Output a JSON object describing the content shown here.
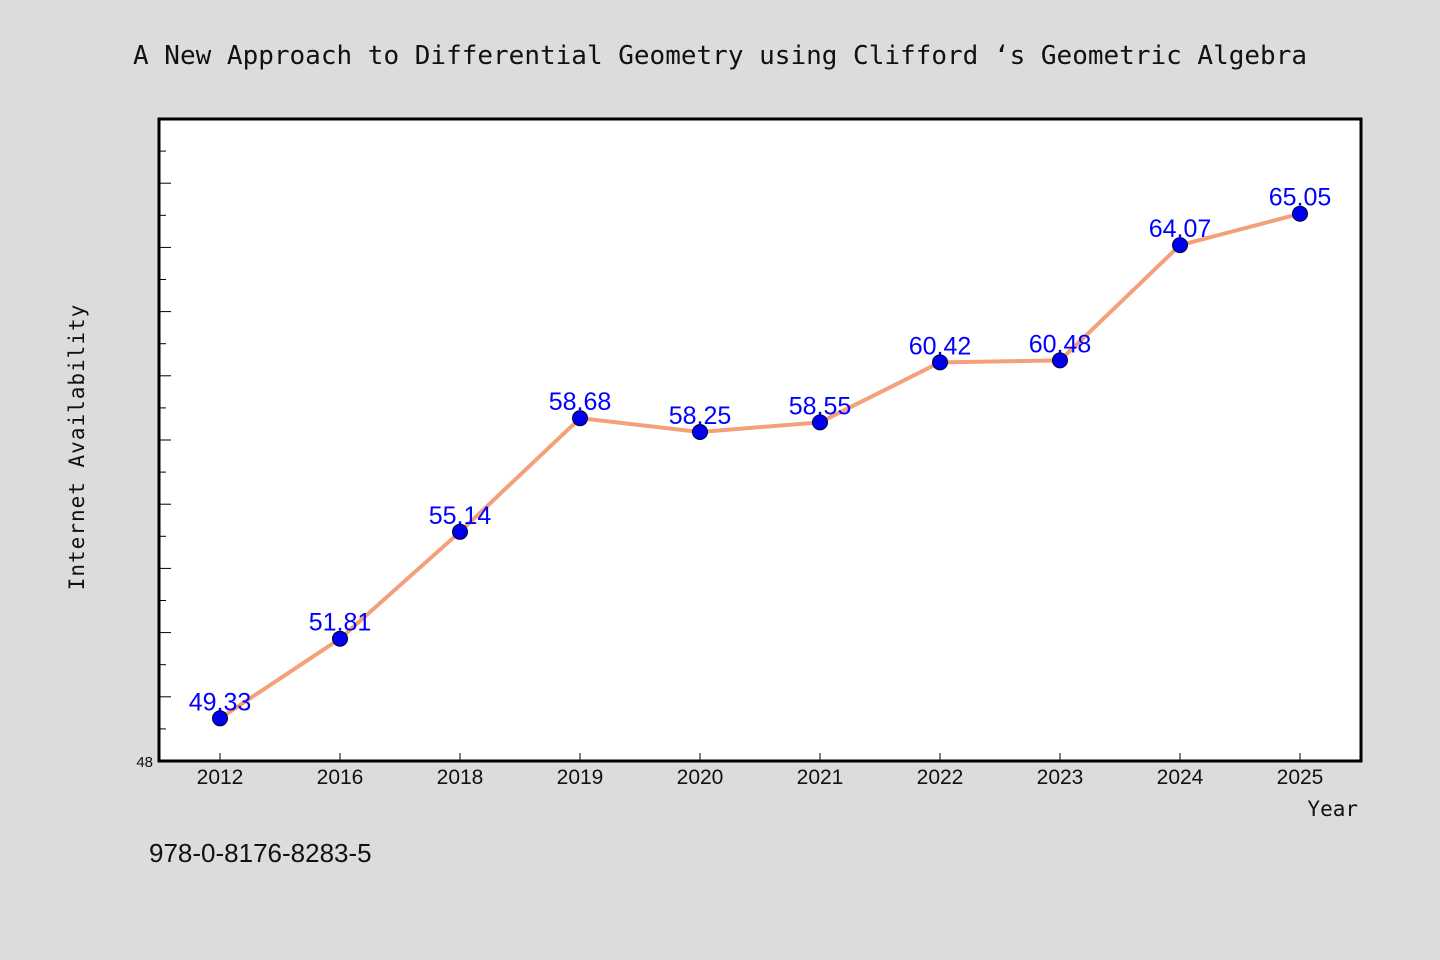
{
  "chart_data": {
    "type": "line",
    "title": "A New Approach to Differential Geometry using Clifford ‘s Geometric Algebra",
    "xlabel": "Year",
    "ylabel": "Internet Availability",
    "categories": [
      "2012",
      "2016",
      "2018",
      "2019",
      "2020",
      "2021",
      "2022",
      "2023",
      "2024",
      "2025"
    ],
    "series": [
      {
        "values": [
          49.33,
          51.81,
          55.14,
          58.68,
          58.25,
          58.55,
          60.42,
          60.48,
          64.07,
          65.05
        ],
        "labels": [
          "49.33",
          "51.81",
          "55.14",
          "58.68",
          "58.25",
          "58.55",
          "60.42",
          "60.48",
          "64.07",
          "65.05"
        ],
        "line_color": "#f4a07a",
        "marker_color": "#0000ee",
        "label_color": "#0000ff"
      }
    ],
    "ylim": [
      48,
      68
    ],
    "yticks_labeled": [
      "48"
    ],
    "grid": false,
    "legend": "none"
  },
  "footer": {
    "isbn": "978-0-8176-8283-5"
  },
  "colors": {
    "background": "#dcdcdc",
    "plot_background": "#ffffff",
    "axis": "#000000"
  }
}
